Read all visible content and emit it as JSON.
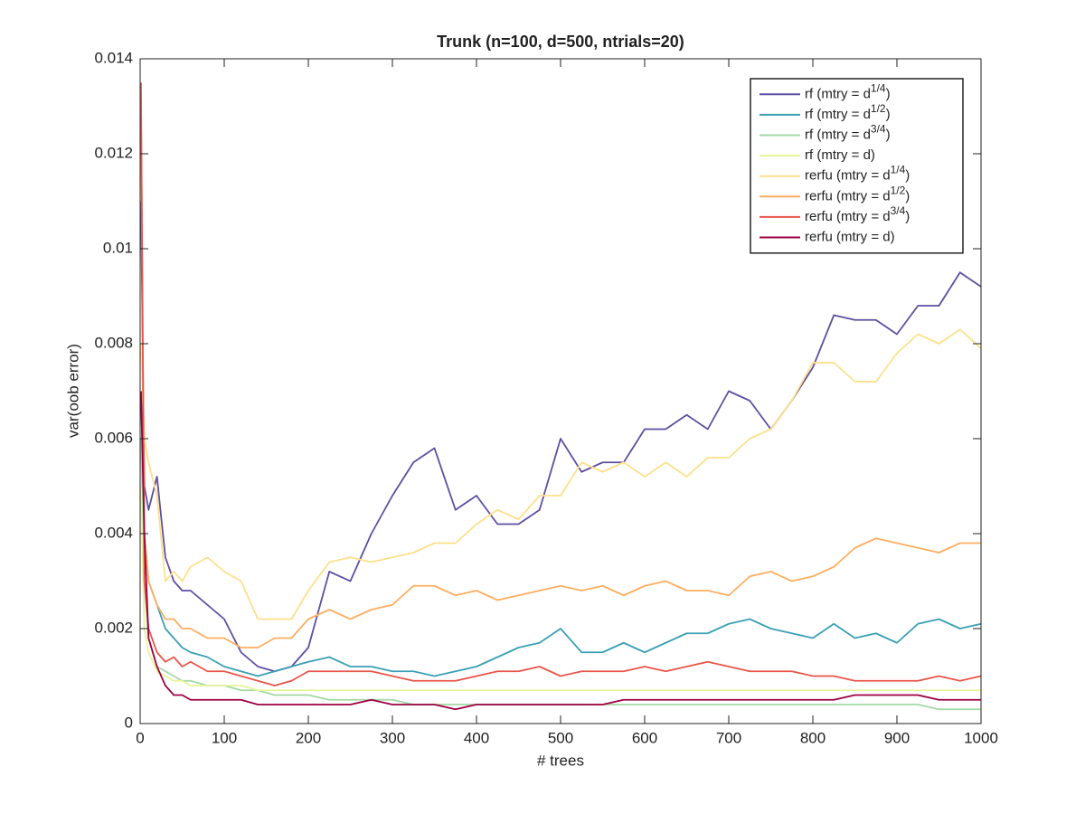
{
  "chart_data": {
    "type": "line",
    "title": "Trunk (n=100, d=500, ntrials=20)",
    "x_label": "# trees",
    "y_label": "var(oob error)",
    "xlim": [
      0,
      1000
    ],
    "xticks": [
      0,
      100,
      200,
      300,
      400,
      500,
      600,
      700,
      800,
      900,
      1000
    ],
    "ylim": [
      0,
      0.014
    ],
    "yticks": [
      0,
      0.002,
      0.004,
      0.006,
      0.008,
      0.01,
      0.012,
      0.014
    ],
    "grid": false,
    "legend": "upper right",
    "x": [
      1,
      5,
      10,
      20,
      30,
      40,
      50,
      60,
      80,
      100,
      120,
      140,
      160,
      180,
      200,
      225,
      250,
      275,
      300,
      325,
      350,
      375,
      400,
      425,
      450,
      475,
      500,
      525,
      550,
      575,
      600,
      625,
      650,
      675,
      700,
      725,
      750,
      775,
      800,
      825,
      850,
      875,
      900,
      925,
      950,
      975,
      1000
    ],
    "series": [
      {
        "name": "rf (mtry = d1/4)",
        "color": "#5e4fa2",
        "values": [
          0.011,
          0.005,
          0.0045,
          0.0052,
          0.0035,
          0.003,
          0.0028,
          0.0028,
          0.0025,
          0.0022,
          0.0015,
          0.0012,
          0.0011,
          0.0012,
          0.0016,
          0.0032,
          0.003,
          0.004,
          0.0048,
          0.0055,
          0.0058,
          0.0045,
          0.0048,
          0.0042,
          0.0042,
          0.0045,
          0.006,
          0.0053,
          0.0055,
          0.0055,
          0.0062,
          0.0062,
          0.0065,
          0.0062,
          0.007,
          0.0068,
          0.0062,
          0.0068,
          0.0075,
          0.0086,
          0.0085,
          0.0085,
          0.0082,
          0.0088,
          0.0088,
          0.0095,
          0.0092
        ]
      },
      {
        "name": "rf (mtry = d1/2)",
        "color": "#3aa0b5",
        "values": [
          0.007,
          0.004,
          0.003,
          0.0025,
          0.002,
          0.0018,
          0.0016,
          0.0015,
          0.0014,
          0.0012,
          0.0011,
          0.001,
          0.0011,
          0.0012,
          0.0013,
          0.0014,
          0.0012,
          0.0012,
          0.0011,
          0.0011,
          0.001,
          0.0011,
          0.0012,
          0.0014,
          0.0016,
          0.0017,
          0.002,
          0.0015,
          0.0015,
          0.0017,
          0.0015,
          0.0017,
          0.0019,
          0.0019,
          0.0021,
          0.0022,
          0.002,
          0.0019,
          0.0018,
          0.0021,
          0.0018,
          0.0019,
          0.0017,
          0.0021,
          0.0022,
          0.002,
          0.0021
        ]
      },
      {
        "name": "rf (mtry = d3/4)",
        "color": "#a3d9a4",
        "values": [
          0.006,
          0.003,
          0.0018,
          0.0012,
          0.0011,
          0.001,
          0.0009,
          0.0009,
          0.0008,
          0.0008,
          0.0007,
          0.0007,
          0.0006,
          0.0006,
          0.0006,
          0.0005,
          0.0005,
          0.0005,
          0.0005,
          0.0004,
          0.0004,
          0.0004,
          0.0004,
          0.0004,
          0.0004,
          0.0004,
          0.0004,
          0.0004,
          0.0004,
          0.0004,
          0.0004,
          0.0004,
          0.0004,
          0.0004,
          0.0004,
          0.0004,
          0.0004,
          0.0004,
          0.0004,
          0.0004,
          0.0004,
          0.0004,
          0.0004,
          0.0004,
          0.0003,
          0.0003,
          0.0003
        ]
      },
      {
        "name": "rf (mtry = d)",
        "color": "#e6f598",
        "values": [
          0.005,
          0.002,
          0.0015,
          0.0011,
          0.001,
          0.0009,
          0.0009,
          0.0008,
          0.0008,
          0.0008,
          0.0008,
          0.0007,
          0.0007,
          0.0007,
          0.0007,
          0.0007,
          0.0007,
          0.0007,
          0.0007,
          0.0007,
          0.0007,
          0.0007,
          0.0007,
          0.0007,
          0.0007,
          0.0007,
          0.0007,
          0.0007,
          0.0007,
          0.0007,
          0.0007,
          0.0007,
          0.0007,
          0.0007,
          0.0007,
          0.0007,
          0.0007,
          0.0007,
          0.0007,
          0.0007,
          0.0007,
          0.0007,
          0.0007,
          0.0007,
          0.0007,
          0.0007,
          0.0007
        ]
      },
      {
        "name": "rerfu (mtry = d1/4)",
        "color": "#fee08b",
        "values": [
          0.008,
          0.006,
          0.0055,
          0.0048,
          0.003,
          0.0032,
          0.003,
          0.0033,
          0.0035,
          0.0032,
          0.003,
          0.0022,
          0.0022,
          0.0022,
          0.0028,
          0.0034,
          0.0035,
          0.0034,
          0.0035,
          0.0036,
          0.0038,
          0.0038,
          0.0042,
          0.0045,
          0.0043,
          0.0048,
          0.0048,
          0.0055,
          0.0053,
          0.0055,
          0.0052,
          0.0055,
          0.0052,
          0.0056,
          0.0056,
          0.006,
          0.0062,
          0.0068,
          0.0076,
          0.0076,
          0.0072,
          0.0072,
          0.0078,
          0.0082,
          0.008,
          0.0083,
          0.0079
        ]
      },
      {
        "name": "rerfu (mtry = d1/2)",
        "color": "#fdae61",
        "values": [
          0.013,
          0.004,
          0.003,
          0.0025,
          0.0022,
          0.0022,
          0.002,
          0.002,
          0.0018,
          0.0018,
          0.0016,
          0.0016,
          0.0018,
          0.0018,
          0.0022,
          0.0024,
          0.0022,
          0.0024,
          0.0025,
          0.0029,
          0.0029,
          0.0027,
          0.0028,
          0.0026,
          0.0027,
          0.0028,
          0.0029,
          0.0028,
          0.0029,
          0.0027,
          0.0029,
          0.003,
          0.0028,
          0.0028,
          0.0027,
          0.0031,
          0.0032,
          0.003,
          0.0031,
          0.0033,
          0.0037,
          0.0039,
          0.0038,
          0.0037,
          0.0036,
          0.0038,
          0.0038
        ]
      },
      {
        "name": "rerfu (mtry = d3/4)",
        "color": "#e8554a",
        "values": [
          0.0135,
          0.003,
          0.002,
          0.0015,
          0.0013,
          0.0014,
          0.0012,
          0.0013,
          0.0011,
          0.0011,
          0.001,
          0.0009,
          0.0008,
          0.0009,
          0.0011,
          0.0011,
          0.0011,
          0.0011,
          0.001,
          0.0009,
          0.0009,
          0.0009,
          0.001,
          0.0011,
          0.0011,
          0.0012,
          0.001,
          0.0011,
          0.0011,
          0.0011,
          0.0012,
          0.0011,
          0.0012,
          0.0013,
          0.0012,
          0.0011,
          0.0011,
          0.0011,
          0.001,
          0.001,
          0.0009,
          0.0009,
          0.0009,
          0.0009,
          0.001,
          0.0009,
          0.001
        ]
      },
      {
        "name": "rerfu (mtry = d)",
        "color": "#9e0142",
        "values": [
          0.007,
          0.004,
          0.0018,
          0.0012,
          0.0008,
          0.0006,
          0.0006,
          0.0005,
          0.0005,
          0.0005,
          0.0005,
          0.0004,
          0.0004,
          0.0004,
          0.0004,
          0.0004,
          0.0004,
          0.0005,
          0.0004,
          0.0004,
          0.0004,
          0.0003,
          0.0004,
          0.0004,
          0.0004,
          0.0004,
          0.0004,
          0.0004,
          0.0004,
          0.0005,
          0.0005,
          0.0005,
          0.0005,
          0.0005,
          0.0005,
          0.0005,
          0.0005,
          0.0005,
          0.0005,
          0.0005,
          0.0006,
          0.0006,
          0.0006,
          0.0006,
          0.0005,
          0.0005,
          0.0005
        ]
      }
    ]
  }
}
